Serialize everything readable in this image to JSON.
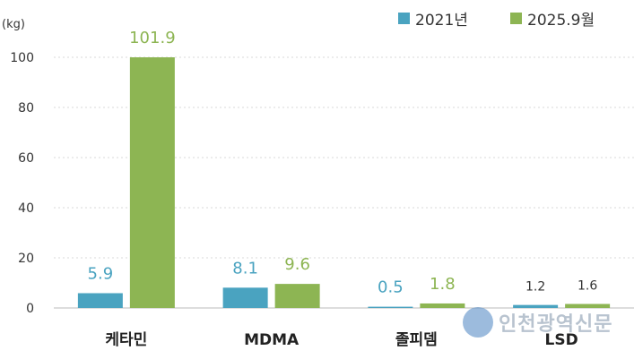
{
  "chart_data": {
    "type": "bar",
    "categories": [
      "케타민",
      "MDMA",
      "졸피뎀",
      "LSD"
    ],
    "series": [
      {
        "name": "2021년",
        "values": [
          5.9,
          8.1,
          0.5,
          1.2
        ],
        "color": "#4aa3c0"
      },
      {
        "name": "2025.9월",
        "values": [
          101.9,
          9.6,
          1.8,
          1.6
        ],
        "color": "#8db553"
      }
    ],
    "data_labels": [
      [
        "5.9",
        "8.1",
        "0.5",
        "1.2"
      ],
      [
        "101.9",
        "9.6",
        "1.8",
        "1.6"
      ]
    ],
    "unit_label": "(kg)",
    "yticks": [
      0,
      20,
      40,
      60,
      80,
      100
    ],
    "ylim": [
      0,
      100
    ],
    "grid": true,
    "legend": "top-right"
  },
  "watermark_text": "인천광역신문"
}
